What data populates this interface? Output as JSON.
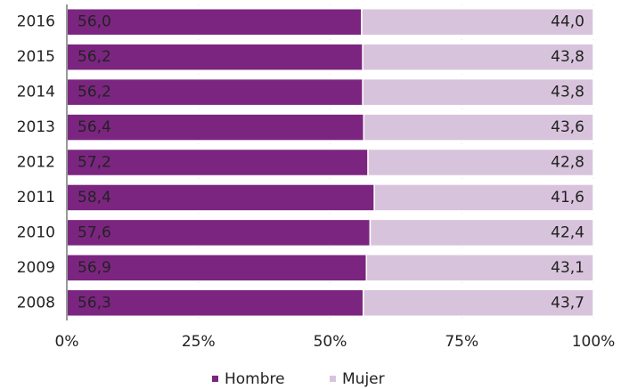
{
  "chart_data": {
    "type": "stacked-bar-horizontal",
    "categories": [
      "2016",
      "2015",
      "2014",
      "2013",
      "2012",
      "2011",
      "2010",
      "2009",
      "2008"
    ],
    "series": [
      {
        "name": "Hombre",
        "color": "#7b2580",
        "values": [
          56.0,
          56.2,
          56.2,
          56.4,
          57.2,
          58.4,
          57.6,
          56.9,
          56.3
        ],
        "value_labels": [
          "56,0",
          "56,2",
          "56,2",
          "56,4",
          "57,2",
          "58,4",
          "57,6",
          "56,9",
          "56,3"
        ]
      },
      {
        "name": "Mujer",
        "color": "#d8c3dc",
        "values": [
          44.0,
          43.8,
          43.8,
          43.6,
          42.8,
          41.6,
          42.4,
          43.1,
          43.7
        ],
        "value_labels": [
          "44,0",
          "43,8",
          "43,8",
          "43,6",
          "42,8",
          "41,6",
          "42,4",
          "43,1",
          "43,7"
        ]
      }
    ],
    "xlim": [
      0,
      100
    ],
    "xticks": [
      {
        "value": 0,
        "label": "0%"
      },
      {
        "value": 25,
        "label": "25%"
      },
      {
        "value": 50,
        "label": "50%"
      },
      {
        "value": 75,
        "label": "75%"
      },
      {
        "value": 100,
        "label": "100%"
      }
    ],
    "grid": true,
    "legend": "bottom"
  }
}
